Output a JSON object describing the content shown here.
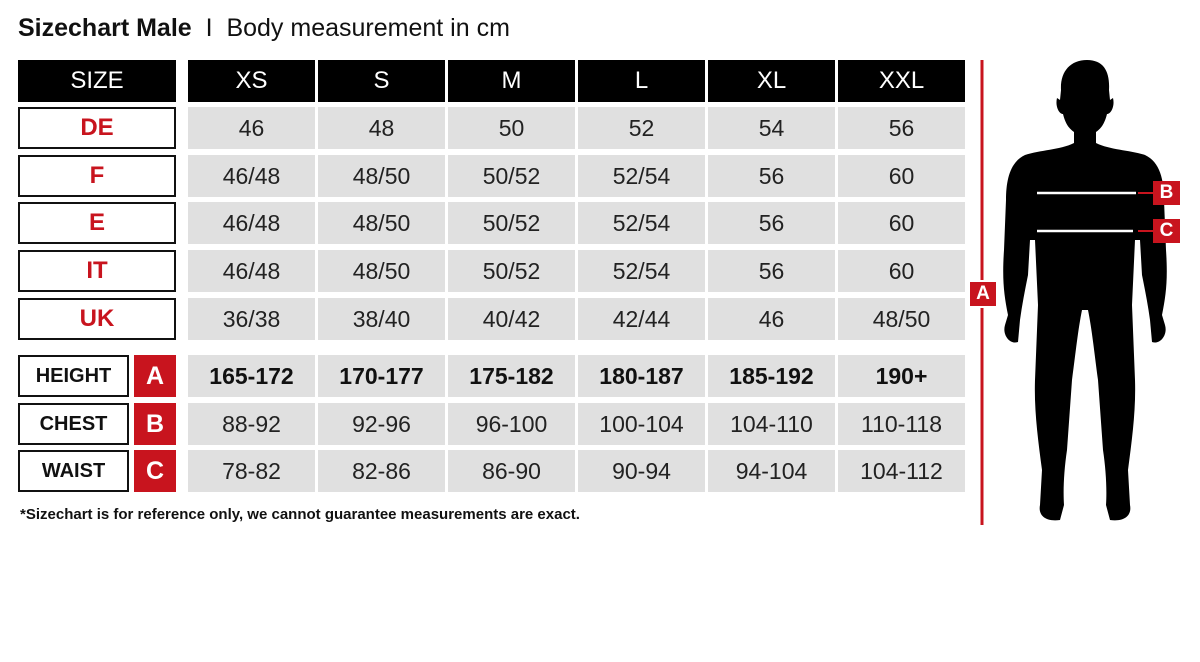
{
  "title": {
    "main": "Sizechart Male",
    "separator": "I",
    "sub": "Body measurement in cm"
  },
  "header": {
    "label": "SIZE",
    "sizes": [
      "XS",
      "S",
      "M",
      "L",
      "XL",
      "XXL"
    ]
  },
  "conversions": [
    {
      "label": "DE",
      "values": [
        "46",
        "48",
        "50",
        "52",
        "54",
        "56"
      ]
    },
    {
      "label": "F",
      "values": [
        "46/48",
        "48/50",
        "50/52",
        "52/54",
        "56",
        "60"
      ]
    },
    {
      "label": "E",
      "values": [
        "46/48",
        "48/50",
        "50/52",
        "52/54",
        "56",
        "60"
      ]
    },
    {
      "label": "IT",
      "values": [
        "46/48",
        "48/50",
        "50/52",
        "52/54",
        "56",
        "60"
      ]
    },
    {
      "label": "UK",
      "values": [
        "36/38",
        "38/40",
        "40/42",
        "42/44",
        "46",
        "48/50"
      ]
    }
  ],
  "measurements": [
    {
      "label": "HEIGHT",
      "marker": "A",
      "values": [
        "165-172",
        "170-177",
        "175-182",
        "180-187",
        "185-192",
        "190+"
      ]
    },
    {
      "label": "CHEST",
      "marker": "B",
      "values": [
        "88-92",
        "92-96",
        "96-100",
        "100-104",
        "104-110",
        "110-118"
      ]
    },
    {
      "label": "WAIST",
      "marker": "C",
      "values": [
        "78-82",
        "82-86",
        "86-90",
        "90-94",
        "94-104",
        "104-112"
      ]
    }
  ],
  "note": "*Sizechart is for reference only, we cannot guarantee measurements are exact.",
  "figure": {
    "height_marker": "A",
    "chest_marker": "B",
    "waist_marker": "C"
  },
  "colors": {
    "accent": "#c8141e",
    "header": "#000000",
    "cell": "#e0e0e0"
  }
}
